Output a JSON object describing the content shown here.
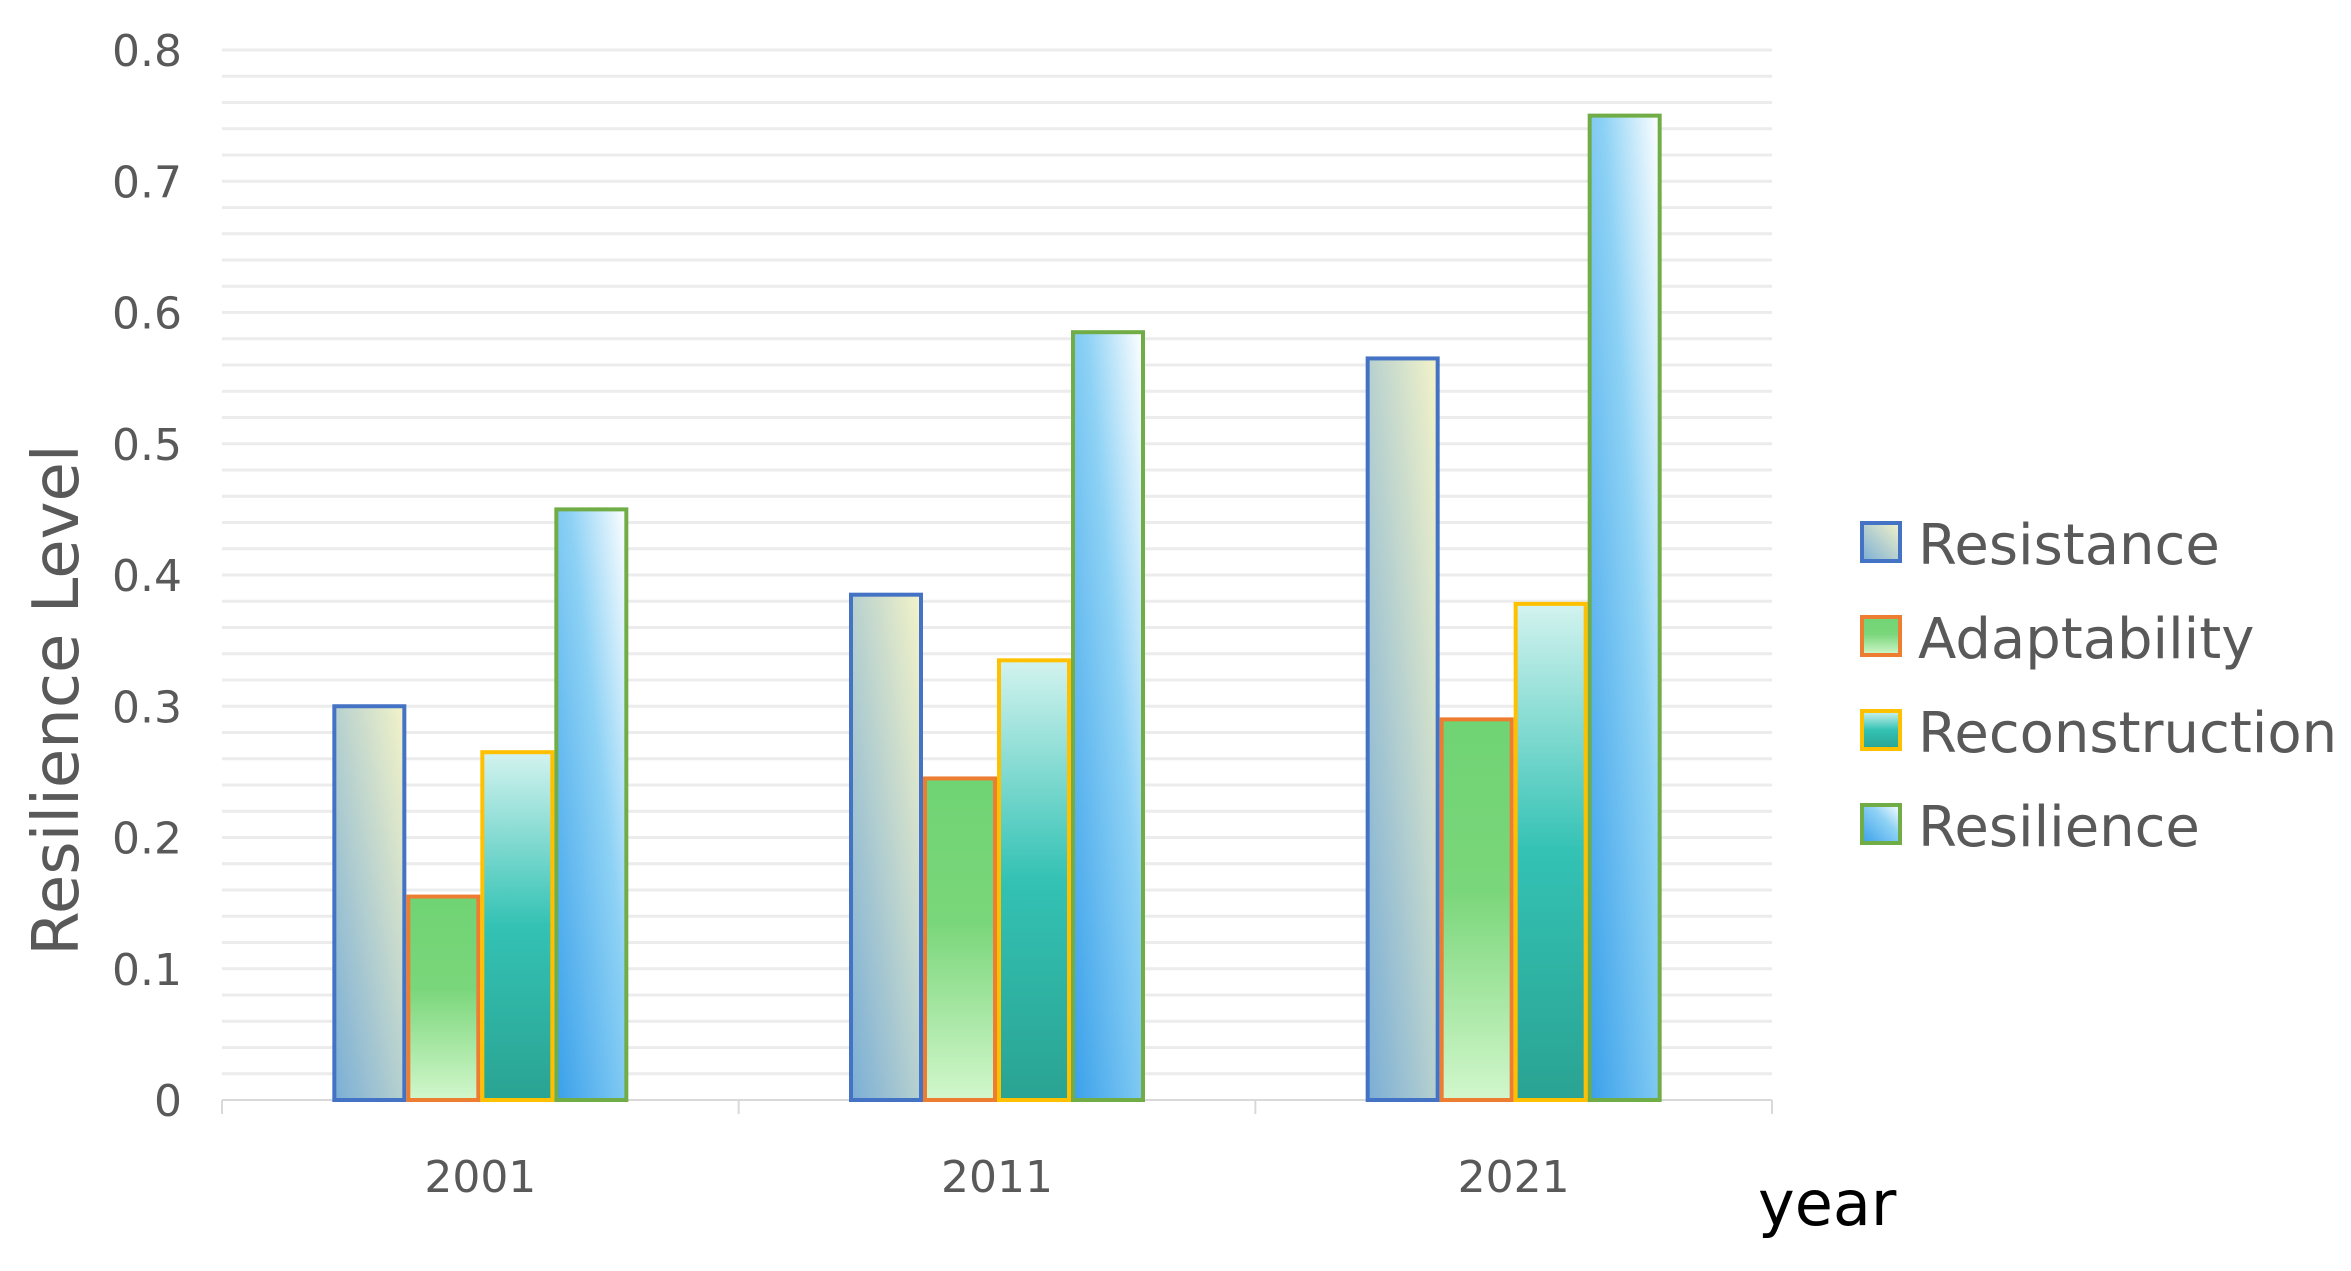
{
  "chart_data": {
    "type": "bar",
    "categories": [
      "2001",
      "2011",
      "2021"
    ],
    "series": [
      {
        "name": "Resistance",
        "values": [
          0.3,
          0.385,
          0.565
        ],
        "border": "#4472C4"
      },
      {
        "name": "Adaptability",
        "values": [
          0.155,
          0.245,
          0.29
        ],
        "border": "#ED7D31"
      },
      {
        "name": "Reconstruction",
        "values": [
          0.265,
          0.335,
          0.378
        ],
        "border": "#FFC000"
      },
      {
        "name": "Resilience",
        "values": [
          0.45,
          0.585,
          0.75
        ],
        "border": "#70AD47"
      }
    ],
    "ylabel": "Resilience Level",
    "xlabel": "year",
    "ylim": [
      0,
      0.8
    ],
    "yticks": [
      "0",
      "0.1",
      "0.2",
      "0.3",
      "0.4",
      "0.5",
      "0.6",
      "0.7",
      "0.8"
    ],
    "grid": true,
    "legend_position": "right"
  }
}
